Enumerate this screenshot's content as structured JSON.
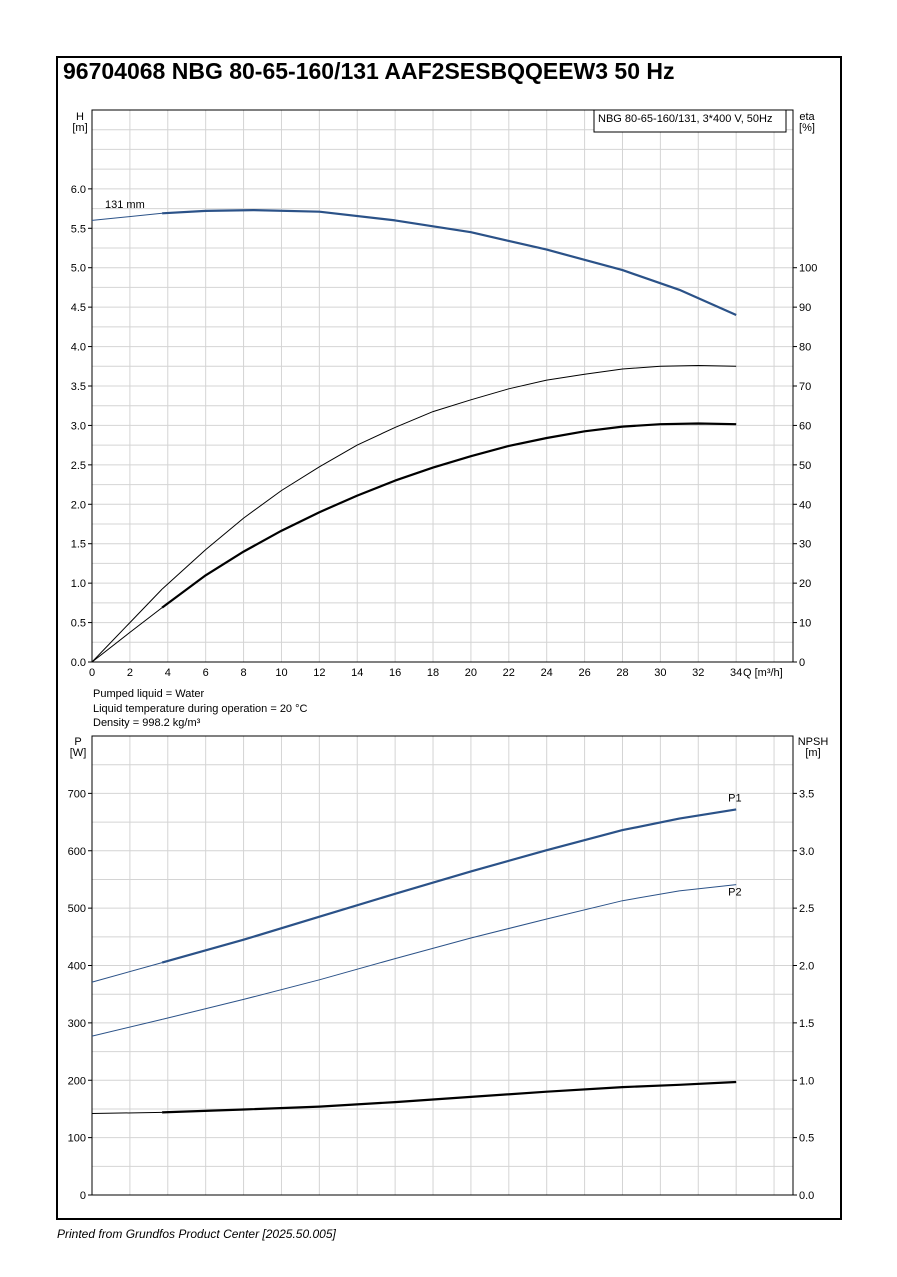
{
  "title": "96704068 NBG 80-65-160/131 AAF2SESBQQEEW3 50 Hz",
  "footer": "Printed from Grundfos Product Center [2025.50.005]",
  "colors": {
    "blue": "#2b5288",
    "black": "#000000",
    "grid": "#d4d4d4"
  },
  "chart_data": [
    {
      "type": "line",
      "legend_box": "NBG 80-65-160/131, 3*400 V, 50Hz",
      "left_axis": {
        "name": "H",
        "unit": "[m]",
        "range": [
          0,
          7
        ],
        "ticks": [
          "0.0",
          "0.5",
          "1.0",
          "1.5",
          "2.0",
          "2.5",
          "3.0",
          "3.5",
          "4.0",
          "4.5",
          "5.0",
          "5.5",
          "6.0"
        ]
      },
      "right_axis": {
        "name": "eta",
        "unit": "[%]",
        "range": [
          0,
          140
        ],
        "ticks": [
          "0",
          "10",
          "20",
          "30",
          "40",
          "50",
          "60",
          "70",
          "80",
          "90",
          "100"
        ]
      },
      "x_axis": {
        "name": "Q [m³/h]",
        "range": [
          0,
          37
        ],
        "ticks": [
          "0",
          "2",
          "4",
          "6",
          "8",
          "10",
          "12",
          "14",
          "16",
          "18",
          "20",
          "22",
          "24",
          "26",
          "28",
          "30",
          "32",
          "34"
        ]
      },
      "annotation": "131 mm",
      "grid": true,
      "series": [
        {
          "axis": "left",
          "color": "blue",
          "x": [
            0,
            3.7,
            6,
            8.5,
            12,
            16,
            20,
            24,
            28,
            31,
            34
          ],
          "y": [
            5.6,
            5.69,
            5.72,
            5.73,
            5.71,
            5.6,
            5.45,
            5.23,
            4.97,
            4.72,
            4.4
          ]
        },
        {
          "axis": "right",
          "color": "black",
          "x": [
            0,
            2,
            3.7,
            6,
            8,
            10,
            12,
            14,
            16,
            18,
            20,
            22,
            24,
            26,
            28,
            30,
            32,
            34
          ],
          "y": [
            0,
            10,
            18.5,
            28.5,
            36.5,
            43.5,
            49.5,
            55,
            59.5,
            63.5,
            66.5,
            69.3,
            71.5,
            73,
            74.3,
            75,
            75.2,
            75
          ]
        },
        {
          "axis": "right",
          "color": "black",
          "x": [
            0,
            2,
            3.7,
            6,
            8,
            10,
            12,
            14,
            16,
            18,
            20,
            22,
            24,
            26,
            28,
            30,
            32,
            34
          ],
          "y": [
            0,
            7.5,
            13.8,
            22,
            28,
            33.3,
            38,
            42.2,
            46,
            49.3,
            52.2,
            54.8,
            56.8,
            58.5,
            59.7,
            60.3,
            60.5,
            60.3
          ]
        }
      ]
    },
    {
      "type": "line",
      "notes": [
        "Pumped liquid = Water",
        "Liquid temperature during operation = 20 °C",
        "Density = 998.2 kg/m³"
      ],
      "left_axis": {
        "name": "P",
        "unit": "[W]",
        "range": [
          0,
          800
        ],
        "ticks": [
          "0",
          "100",
          "200",
          "300",
          "400",
          "500",
          "600",
          "700"
        ]
      },
      "right_axis": {
        "name": "NPSH",
        "unit": "[m]",
        "range": [
          0,
          4
        ],
        "ticks": [
          "0.0",
          "0.5",
          "1.0",
          "1.5",
          "2.0",
          "2.5",
          "3.0",
          "3.5"
        ]
      },
      "x_axis": {
        "range": [
          0,
          37
        ]
      },
      "grid": true,
      "series": [
        {
          "name": "P1",
          "axis": "left",
          "color": "blue",
          "x": [
            0,
            3.7,
            8,
            12,
            16,
            20,
            24,
            28,
            31,
            34
          ],
          "y": [
            371,
            405,
            445,
            485,
            525,
            564,
            601,
            636,
            656,
            672
          ]
        },
        {
          "name": "P2",
          "axis": "left",
          "color": "blue",
          "x": [
            0,
            3.7,
            8,
            12,
            16,
            20,
            24,
            28,
            31,
            34
          ],
          "y": [
            277,
            306,
            341,
            375,
            412,
            448,
            481,
            513,
            530,
            541
          ]
        },
        {
          "axis": "right",
          "color": "black",
          "x": [
            0,
            3.7,
            8,
            12,
            16,
            20,
            24,
            28,
            31,
            34
          ],
          "y": [
            0.71,
            0.72,
            0.745,
            0.77,
            0.81,
            0.855,
            0.9,
            0.94,
            0.96,
            0.985
          ]
        }
      ]
    }
  ]
}
